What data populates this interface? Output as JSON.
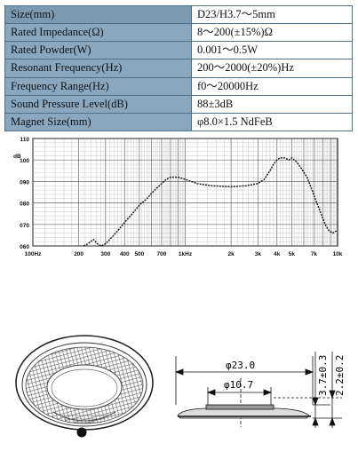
{
  "specs": [
    {
      "label": "Size(mm)",
      "value": "D23/H3.7～5mm"
    },
    {
      "label": "Rated Impedance(Ω)",
      "value": "8～200(±15%)Ω"
    },
    {
      "label": "Rated Powder(W)",
      "value": "0.001～0.5W"
    },
    {
      "label": "Resonant Frequency(Hz)",
      "value": "200～2000(±20%)Hz"
    },
    {
      "label": "Frequency Range(Hz)",
      "value": "f0～20000Hz"
    },
    {
      "label": "Sound Pressure Level(dB)",
      "value": "88±3dB"
    },
    {
      "label": "Magnet Size(mm)",
      "value": "φ8.0×1.5 NdFeB"
    }
  ],
  "chart_data": {
    "type": "line",
    "title": "",
    "ylabel": "dB",
    "xscale": "log",
    "xlim": [
      100,
      10000
    ],
    "ylim": [
      60,
      110
    ],
    "grid": true,
    "x_tick_labels": [
      "100Hz",
      "200",
      "300",
      "400",
      "500",
      "700",
      "1kHz",
      "2k",
      "3k",
      "4k",
      "5k",
      "7k",
      "10k"
    ],
    "x_ticks": [
      100,
      200,
      300,
      400,
      500,
      700,
      1000,
      2000,
      3000,
      4000,
      5000,
      7000,
      10000
    ],
    "y_tick_labels": [
      "110",
      "100",
      "090",
      "080",
      "070",
      "060"
    ],
    "y_ticks": [
      110,
      100,
      90,
      80,
      70,
      60
    ],
    "series": [
      {
        "x": [
          215,
          230,
          250,
          265,
          280,
          300,
          330,
          360,
          400,
          450,
          500,
          560,
          630,
          700,
          750,
          800,
          900,
          1000,
          1200,
          1500,
          2000,
          2500,
          3000,
          3300,
          3600,
          3800,
          4000,
          4200,
          4500,
          4800,
          5000,
          5400,
          5800,
          6300,
          6800,
          7300,
          7800,
          8300,
          8800,
          9300,
          9800
        ],
        "y": [
          59,
          61,
          63,
          61,
          59,
          61,
          64,
          67,
          71,
          75,
          79,
          82,
          86,
          89,
          91,
          92,
          92,
          91,
          89,
          88,
          87.5,
          88,
          89,
          91,
          95,
          98,
          100,
          101,
          101,
          100,
          101,
          99,
          96,
          92,
          86,
          80,
          75,
          70,
          67,
          66,
          67
        ]
      }
    ]
  },
  "drawing": {
    "outer_dim": "φ23.0",
    "inner_dim": "φ10.7",
    "height_dim": "3.7±0.3",
    "height2_dim": "2.2±0.2"
  }
}
